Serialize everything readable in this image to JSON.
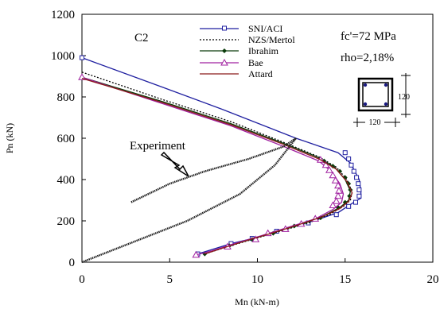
{
  "chart_data": {
    "type": "line",
    "title": "C2",
    "xlabel": "Mn (kN-m)",
    "ylabel": "Pn (kN)",
    "xlim": [
      0,
      20
    ],
    "ylim": [
      0,
      1200
    ],
    "x_ticks": [
      "0",
      "5",
      "10",
      "15",
      "20"
    ],
    "y_ticks": [
      "0",
      "200",
      "400",
      "600",
      "800",
      "1000",
      "1200"
    ],
    "grid": false,
    "legend_position": "top-center",
    "annotations": {
      "fc": "fc'=72 MPa",
      "rho": "rho=2,18%",
      "experiment": "Experiment",
      "dim_vertical": "120",
      "dim_horizontal": "120"
    },
    "series": [
      {
        "name": "SNI/ACI",
        "color": "#1f1fa0",
        "marker": "square",
        "points": [
          [
            0,
            990
          ],
          [
            4.5,
            850
          ],
          [
            8,
            740
          ],
          [
            12.2,
            600
          ],
          [
            14.6,
            530
          ],
          [
            15.3,
            480
          ],
          [
            15.8,
            400
          ],
          [
            15.9,
            340
          ],
          [
            15.9,
            310
          ],
          [
            15.5,
            290
          ],
          [
            14.6,
            240
          ],
          [
            13.2,
            200
          ],
          [
            11.5,
            160
          ],
          [
            10,
            120
          ],
          [
            8.5,
            90
          ],
          [
            6.6,
            40
          ]
        ],
        "marker_points": [
          [
            0,
            990
          ],
          [
            15.0,
            530
          ],
          [
            15.2,
            500
          ],
          [
            15.35,
            470
          ],
          [
            15.5,
            440
          ],
          [
            15.65,
            410
          ],
          [
            15.75,
            380
          ],
          [
            15.8,
            350
          ],
          [
            15.8,
            320
          ],
          [
            15.6,
            290
          ],
          [
            15.2,
            270
          ],
          [
            14.5,
            230
          ],
          [
            12.9,
            190
          ],
          [
            11.1,
            150
          ],
          [
            9.7,
            115
          ],
          [
            8.5,
            90
          ],
          [
            6.6,
            40
          ]
        ]
      },
      {
        "name": "NZS/Mertol",
        "color": "#000000",
        "marker": "none",
        "points": [
          [
            0,
            920
          ],
          [
            4.5,
            790
          ],
          [
            8.5,
            680
          ],
          [
            11.5,
            580
          ],
          [
            13.5,
            510
          ],
          [
            14.5,
            460
          ],
          [
            15.1,
            400
          ],
          [
            15.4,
            340
          ],
          [
            15.3,
            300
          ],
          [
            14.9,
            270
          ],
          [
            14.1,
            230
          ],
          [
            12.9,
            190
          ],
          [
            11.3,
            150
          ],
          [
            9.7,
            110
          ],
          [
            8.3,
            75
          ],
          [
            7.0,
            40
          ]
        ]
      },
      {
        "name": "Ibrahim",
        "color": "#0a3a0a",
        "marker": "diamond",
        "points": [
          [
            0,
            895
          ],
          [
            4.5,
            780
          ],
          [
            8.5,
            670
          ],
          [
            11.5,
            575
          ],
          [
            13.4,
            510
          ],
          [
            14.4,
            460
          ],
          [
            15.0,
            400
          ],
          [
            15.3,
            345
          ],
          [
            15.2,
            300
          ],
          [
            14.7,
            265
          ],
          [
            13.8,
            225
          ],
          [
            12.6,
            185
          ],
          [
            11.0,
            145
          ],
          [
            9.4,
            105
          ],
          [
            8.0,
            70
          ],
          [
            7.0,
            40
          ]
        ],
        "marker_points": [
          [
            0,
            895
          ],
          [
            13.8,
            490
          ],
          [
            14.3,
            465
          ],
          [
            14.7,
            440
          ],
          [
            15.0,
            410
          ],
          [
            15.2,
            380
          ],
          [
            15.3,
            350
          ],
          [
            15.25,
            320
          ],
          [
            15.0,
            290
          ],
          [
            14.6,
            265
          ],
          [
            13.6,
            215
          ],
          [
            12.1,
            175
          ],
          [
            10.9,
            140
          ],
          [
            9.7,
            110
          ],
          [
            8.4,
            80
          ],
          [
            7.0,
            40
          ]
        ]
      },
      {
        "name": "Bae",
        "color": "#a020a0",
        "marker": "triangle",
        "points": [
          [
            0,
            895
          ],
          [
            4.5,
            770
          ],
          [
            8.5,
            660
          ],
          [
            11.5,
            560
          ],
          [
            13.5,
            490
          ],
          [
            14.2,
            440
          ],
          [
            14.7,
            380
          ],
          [
            14.9,
            330
          ],
          [
            14.8,
            290
          ],
          [
            14.3,
            255
          ],
          [
            13.3,
            210
          ],
          [
            11.8,
            170
          ],
          [
            10.1,
            125
          ],
          [
            8.5,
            85
          ],
          [
            7.4,
            55
          ],
          [
            6.5,
            35
          ]
        ],
        "marker_points": [
          [
            0,
            895
          ],
          [
            13.6,
            495
          ],
          [
            13.9,
            470
          ],
          [
            14.1,
            445
          ],
          [
            14.3,
            420
          ],
          [
            14.45,
            395
          ],
          [
            14.6,
            370
          ],
          [
            14.65,
            345
          ],
          [
            14.6,
            320
          ],
          [
            14.5,
            295
          ],
          [
            14.3,
            275
          ],
          [
            13.3,
            210
          ],
          [
            12.5,
            185
          ],
          [
            11.6,
            160
          ],
          [
            10.6,
            140
          ],
          [
            9.9,
            110
          ],
          [
            8.3,
            75
          ],
          [
            6.5,
            35
          ]
        ]
      },
      {
        "name": "Attard",
        "color": "#8b1a1a",
        "marker": "none",
        "points": [
          [
            0,
            890
          ],
          [
            4.5,
            775
          ],
          [
            8.5,
            665
          ],
          [
            11.5,
            570
          ],
          [
            13.5,
            500
          ],
          [
            14.5,
            450
          ],
          [
            15.1,
            390
          ],
          [
            15.4,
            335
          ],
          [
            15.2,
            295
          ],
          [
            14.7,
            260
          ],
          [
            13.7,
            220
          ],
          [
            12.3,
            180
          ],
          [
            10.8,
            140
          ],
          [
            9.2,
            100
          ],
          [
            7.9,
            65
          ],
          [
            7.0,
            40
          ]
        ]
      },
      {
        "name": "Experiment",
        "color": "#222222",
        "marker": "none",
        "points": [
          [
            0,
            0
          ],
          [
            3,
            100
          ],
          [
            6,
            200
          ],
          [
            9,
            330
          ],
          [
            11,
            470
          ],
          [
            12.2,
            600
          ],
          [
            11.5,
            560
          ],
          [
            9.5,
            500
          ],
          [
            7,
            440
          ],
          [
            5,
            380
          ],
          [
            2.8,
            290
          ]
        ]
      }
    ]
  }
}
